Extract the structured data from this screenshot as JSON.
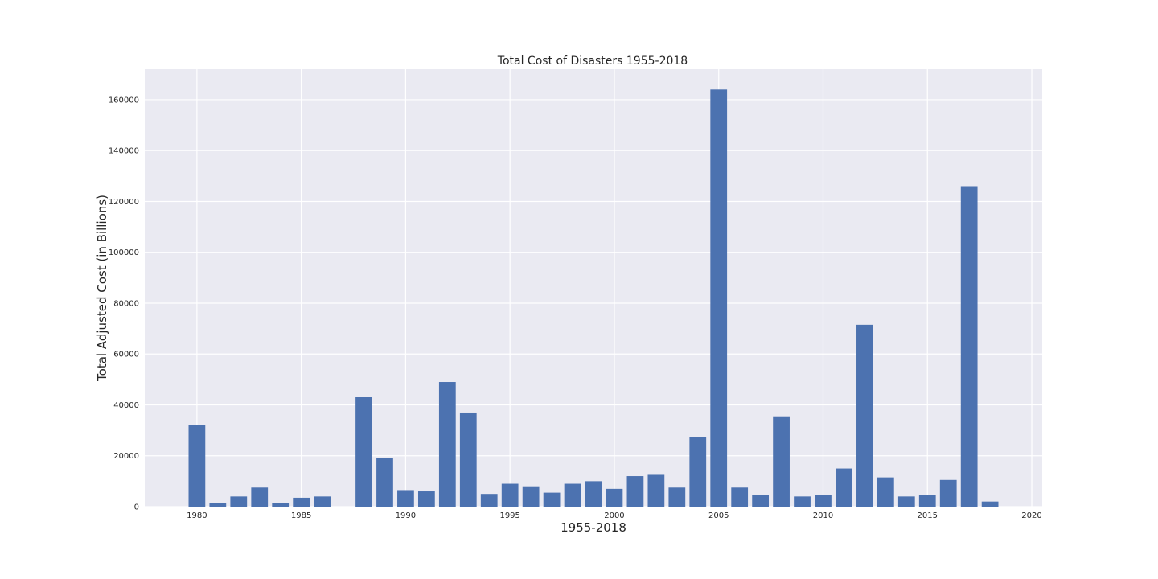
{
  "chart_data": {
    "type": "bar",
    "title": "Total Cost of Disasters 1955-2018",
    "xlabel": "1955-2018",
    "ylabel": "Total Adjusted Cost (in Billions)",
    "xlim": [
      1977.5,
      2020.5
    ],
    "ylim": [
      0,
      172000
    ],
    "grid": true,
    "x_ticks": [
      1980,
      1985,
      1990,
      1995,
      2000,
      2005,
      2010,
      2015,
      2020
    ],
    "y_ticks": [
      0,
      20000,
      40000,
      60000,
      80000,
      100000,
      120000,
      140000,
      160000
    ],
    "bar_color": "#4c72b0",
    "background_color": "#eaeaf2",
    "x": [
      1980,
      1981,
      1982,
      1983,
      1984,
      1985,
      1986,
      1988,
      1989,
      1990,
      1991,
      1992,
      1993,
      1994,
      1995,
      1996,
      1997,
      1998,
      1999,
      2000,
      2001,
      2002,
      2003,
      2004,
      2005,
      2006,
      2007,
      2008,
      2009,
      2010,
      2011,
      2012,
      2013,
      2014,
      2015,
      2016,
      2017,
      2018
    ],
    "values": [
      32000,
      1500,
      4000,
      7500,
      1500,
      3500,
      4000,
      43000,
      19000,
      6500,
      6000,
      49000,
      37000,
      5000,
      9000,
      8000,
      5500,
      9000,
      10000,
      7000,
      12000,
      12500,
      7500,
      27500,
      164000,
      7500,
      4500,
      35500,
      4000,
      4500,
      15000,
      71500,
      11500,
      4000,
      4500,
      10500,
      126000,
      2000
    ]
  }
}
